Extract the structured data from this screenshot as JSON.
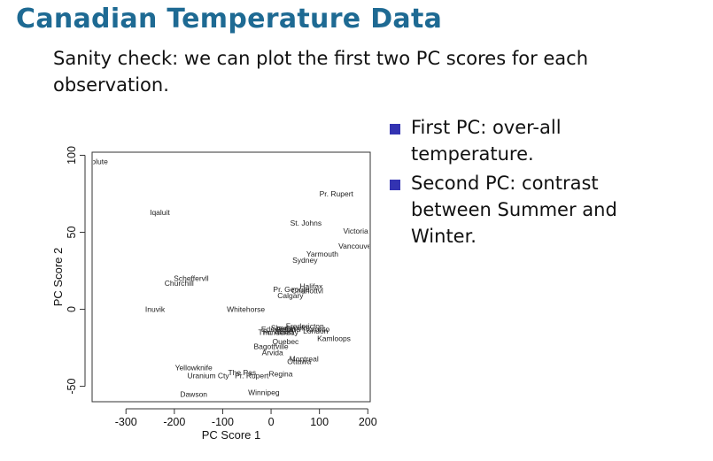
{
  "slide": {
    "title": "Canadian Temperature Data",
    "intro": "Sanity check: we can plot the first two PC scores for each observation.",
    "bullets": [
      "First PC: over-all temperature.",
      "Second PC: contrast between Summer and Winter."
    ]
  },
  "chart_data": {
    "type": "scatter",
    "marker": "text labels",
    "xlabel": "PC Score 1",
    "ylabel": "PC Score 2",
    "xlim": [
      -370,
      205
    ],
    "ylim": [
      -60,
      102
    ],
    "xticks": [
      -300,
      -200,
      -100,
      0,
      100,
      200
    ],
    "yticks": [
      -50,
      0,
      50,
      100
    ],
    "points": [
      {
        "label": "Resolute",
        "x": -368,
        "y": 96
      },
      {
        "label": "Iqaluit",
        "x": -230,
        "y": 63
      },
      {
        "label": "Pr. Rupert",
        "x": 135,
        "y": 75
      },
      {
        "label": "St. Johns",
        "x": 72,
        "y": 56
      },
      {
        "label": "Victoria",
        "x": 175,
        "y": 51
      },
      {
        "label": "Vancouver",
        "x": 176,
        "y": 41
      },
      {
        "label": "Yarmouth",
        "x": 106,
        "y": 36
      },
      {
        "label": "Sydney",
        "x": 70,
        "y": 32
      },
      {
        "label": "Scheffervll",
        "x": -165,
        "y": 20
      },
      {
        "label": "Churchill",
        "x": -190,
        "y": 17
      },
      {
        "label": "Halifax",
        "x": 83,
        "y": 15
      },
      {
        "label": "Pr. George",
        "x": 42,
        "y": 13
      },
      {
        "label": "Charlottvl",
        "x": 75,
        "y": 12
      },
      {
        "label": "Calgary",
        "x": 40,
        "y": 9
      },
      {
        "label": "Inuvik",
        "x": -240,
        "y": 0
      },
      {
        "label": "Whitehorse",
        "x": -52,
        "y": 0
      },
      {
        "label": "Fredericton",
        "x": 70,
        "y": -11
      },
      {
        "label": "Sherbrooke",
        "x": 40,
        "y": -12
      },
      {
        "label": "Edmonton",
        "x": 15,
        "y": -13
      },
      {
        "label": "Regina",
        "x": 36,
        "y": -13
      },
      {
        "label": "Toronto",
        "x": 95,
        "y": -13
      },
      {
        "label": "London",
        "x": 92,
        "y": -14
      },
      {
        "label": "Pr. Albert",
        "x": 15,
        "y": -15
      },
      {
        "label": "Thunderbay",
        "x": 15,
        "y": -15
      },
      {
        "label": "Kamloops",
        "x": 130,
        "y": -19
      },
      {
        "label": "Quebec",
        "x": 30,
        "y": -21
      },
      {
        "label": "Bagottville",
        "x": 0,
        "y": -24
      },
      {
        "label": "Arvida",
        "x": 3,
        "y": -28
      },
      {
        "label": "Montreal",
        "x": 68,
        "y": -32
      },
      {
        "label": "Ottawa",
        "x": 58,
        "y": -34
      },
      {
        "label": "Yellowknife",
        "x": -160,
        "y": -38
      },
      {
        "label": "Uranium Cty",
        "x": -130,
        "y": -43
      },
      {
        "label": "The Pas",
        "x": -60,
        "y": -41
      },
      {
        "label": "Pr. Rupert",
        "x": -40,
        "y": -43
      },
      {
        "label": "Regina",
        "x": 20,
        "y": -42
      },
      {
        "label": "Dawson",
        "x": -160,
        "y": -55
      },
      {
        "label": "Winnipeg",
        "x": -15,
        "y": -54
      }
    ]
  }
}
